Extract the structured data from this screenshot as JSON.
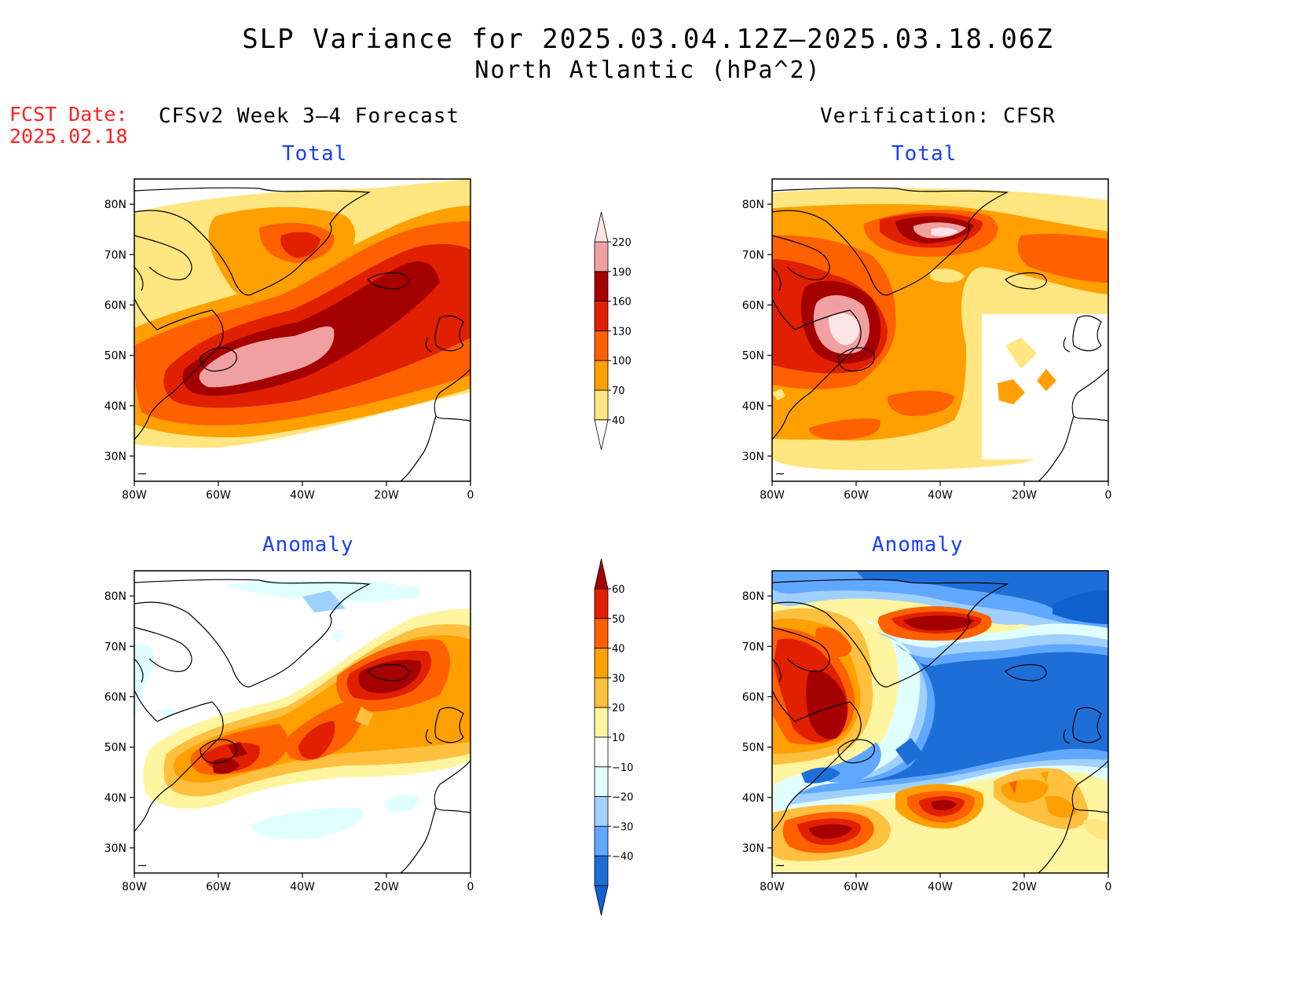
{
  "header": {
    "title_line1": "SLP Variance for 2025.03.04.12Z–2025.03.18.06Z",
    "title_line2": "North Atlantic (hPa^2)",
    "fcst_label": "FCST Date:",
    "fcst_date": "2025.02.18",
    "left_column_title": "CFSv2 Week 3–4 Forecast",
    "right_column_title": "Verification: CFSR"
  },
  "panels": {
    "forecast_total_title": "Total",
    "verification_total_title": "Total",
    "forecast_anomaly_title": "Anomaly",
    "verification_anomaly_title": "Anomaly"
  },
  "axes": {
    "lat_ticks": [
      "80N",
      "70N",
      "60N",
      "50N",
      "40N",
      "30N"
    ],
    "lat_values": [
      80,
      70,
      60,
      50,
      40,
      30
    ],
    "lon_ticks": [
      "80W",
      "60W",
      "40W",
      "20W",
      "0"
    ],
    "lon_values": [
      -80,
      -60,
      -40,
      -20,
      0
    ],
    "lon_range": [
      -80,
      0
    ],
    "lat_range": [
      25,
      85
    ]
  },
  "colorbars": {
    "total": {
      "levels": [
        "40",
        "70",
        "100",
        "130",
        "160",
        "190",
        "220"
      ],
      "colors": [
        "#ffe680",
        "#ffa000",
        "#ff6000",
        "#e02000",
        "#a50000",
        "#f0a0a0",
        "#fde5e5"
      ]
    },
    "anomaly": {
      "levels": [
        "60",
        "50",
        "40",
        "30",
        "20",
        "10",
        "−10",
        "−20",
        "−30",
        "−40"
      ],
      "colors": [
        "#a50000",
        "#e02000",
        "#ff6000",
        "#ffa000",
        "#ffc040",
        "#fff5a0",
        "#ffffff",
        "#e0ffff",
        "#a0d0ff",
        "#60a8ff",
        "#1e6ed8",
        "#1060d0"
      ]
    }
  },
  "chart_data": [
    {
      "type": "heatmap",
      "title": "Total",
      "group": "CFSv2 Week 3–4 Forecast",
      "units": "hPa^2",
      "xlim": [
        -80,
        0
      ],
      "ylim": [
        25,
        85
      ],
      "features": [
        {
          "lon": -55,
          "lat": 49,
          "value": 215
        },
        {
          "lon": -35,
          "lat": 55,
          "value": 175
        },
        {
          "lon": -20,
          "lat": 63,
          "value": 170
        },
        {
          "lon": -40,
          "lat": 74,
          "value": 140
        },
        {
          "lon": -10,
          "lat": 60,
          "value": 135
        },
        {
          "lon": -70,
          "lat": 44,
          "value": 130
        }
      ]
    },
    {
      "type": "heatmap",
      "title": "Total",
      "group": "Verification: CFSR",
      "units": "hPa^2",
      "xlim": [
        -80,
        0
      ],
      "ylim": [
        25,
        85
      ],
      "features": [
        {
          "lon": -63,
          "lat": 55,
          "value": 230
        },
        {
          "lon": -40,
          "lat": 75,
          "value": 215
        },
        {
          "lon": -65,
          "lat": 50,
          "value": 165
        },
        {
          "lon": -55,
          "lat": 40,
          "value": 100
        },
        {
          "lon": -10,
          "lat": 70,
          "value": 120
        },
        {
          "lon": -15,
          "lat": 45,
          "value": 75
        },
        {
          "lon": -25,
          "lat": 43,
          "value": 75
        }
      ]
    },
    {
      "type": "heatmap",
      "title": "Anomaly",
      "group": "CFSv2 Week 3–4 Forecast",
      "units": "hPa^2",
      "xlim": [
        -80,
        0
      ],
      "ylim": [
        25,
        85
      ],
      "features": [
        {
          "lon": -18,
          "lat": 65,
          "value": 62
        },
        {
          "lon": -57,
          "lat": 48,
          "value": 58
        },
        {
          "lon": -37,
          "lat": 51,
          "value": 52
        },
        {
          "lon": -25,
          "lat": 57,
          "value": 40
        },
        {
          "lon": -40,
          "lat": 80,
          "value": -22
        },
        {
          "lon": -45,
          "lat": 35,
          "value": -12
        },
        {
          "lon": -15,
          "lat": 38,
          "value": -12
        }
      ]
    },
    {
      "type": "heatmap",
      "title": "Anomaly",
      "group": "Verification: CFSR",
      "units": "hPa^2",
      "xlim": [
        -80,
        0
      ],
      "ylim": [
        25,
        85
      ],
      "features": [
        {
          "lon": -65,
          "lat": 57,
          "value": 65
        },
        {
          "lon": -40,
          "lat": 75,
          "value": 65
        },
        {
          "lon": -40,
          "lat": 38,
          "value": 60
        },
        {
          "lon": -68,
          "lat": 33,
          "value": 60
        },
        {
          "lon": -22,
          "lat": 38,
          "value": 35
        },
        {
          "lon": -30,
          "lat": 55,
          "value": -45
        },
        {
          "lon": -10,
          "lat": 75,
          "value": -45
        },
        {
          "lon": -55,
          "lat": 45,
          "value": -45
        }
      ]
    }
  ]
}
